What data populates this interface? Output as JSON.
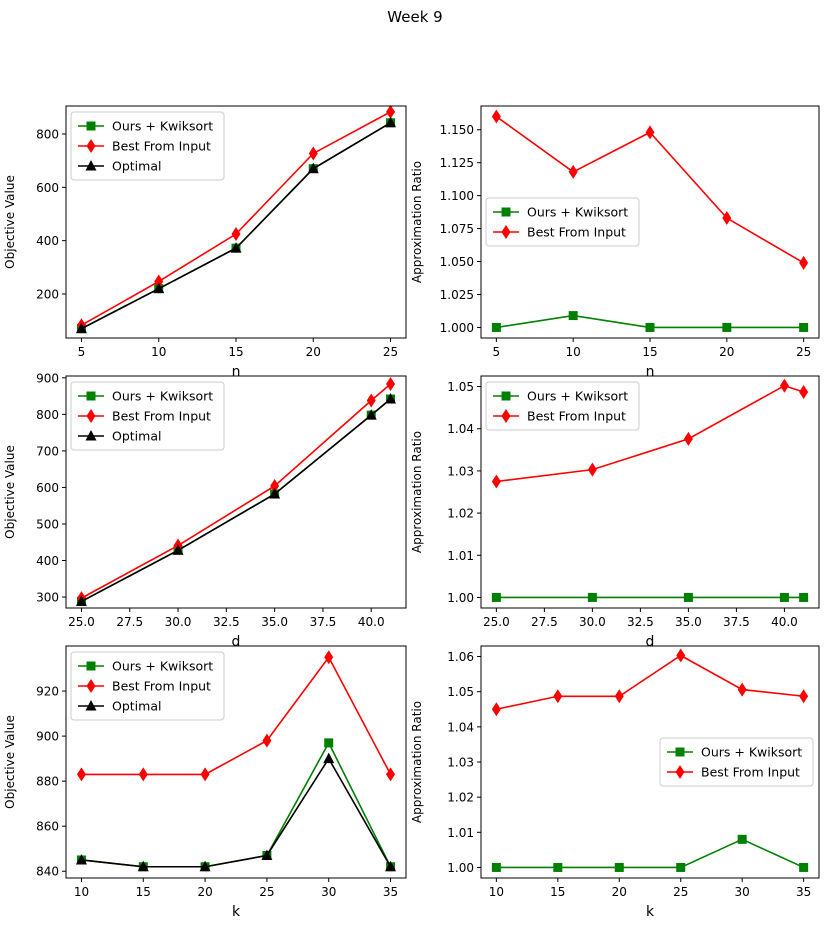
{
  "figure_title": "Week 9",
  "colors": {
    "ours": "#008000",
    "input": "#ff0000",
    "optimal": "#000000"
  },
  "chart_data": [
    {
      "type": "line",
      "id": "n_obj",
      "xlabel": "n",
      "ylabel": "Objective Value",
      "x": [
        5,
        10,
        15,
        20,
        25
      ],
      "xlim": [
        4.0,
        26.0
      ],
      "ylim": [
        35,
        905
      ],
      "xticks": [
        5,
        10,
        15,
        20,
        25
      ],
      "xtick_labels": [
        "5",
        "10",
        "15",
        "20",
        "25"
      ],
      "yticks": [
        200,
        400,
        600,
        800
      ],
      "ytick_labels": [
        "200",
        "400",
        "600",
        "800"
      ],
      "legend": "upper-left",
      "series": [
        {
          "name": "Ours + Kwiksort",
          "color": "#008000",
          "marker": "square",
          "values": [
            70,
            220,
            372,
            670,
            842
          ]
        },
        {
          "name": "Best From Input",
          "color": "#ff0000",
          "marker": "diamond",
          "values": [
            83,
            247,
            425,
            727,
            883
          ]
        },
        {
          "name": "Optimal",
          "color": "#000000",
          "marker": "triangle",
          "values": [
            70,
            220,
            372,
            670,
            842
          ]
        }
      ]
    },
    {
      "type": "line",
      "id": "n_ratio",
      "xlabel": "n",
      "ylabel": "Approximation Ratio",
      "x": [
        5,
        10,
        15,
        20,
        25
      ],
      "xlim": [
        4.0,
        26.0
      ],
      "ylim": [
        0.992,
        1.168
      ],
      "xticks": [
        5,
        10,
        15,
        20,
        25
      ],
      "xtick_labels": [
        "5",
        "10",
        "15",
        "20",
        "25"
      ],
      "yticks": [
        1.0,
        1.025,
        1.05,
        1.075,
        1.1,
        1.125,
        1.15
      ],
      "ytick_labels": [
        "1.000",
        "1.025",
        "1.050",
        "1.075",
        "1.100",
        "1.125",
        "1.150"
      ],
      "legend": "center-left",
      "series": [
        {
          "name": "Ours + Kwiksort",
          "color": "#008000",
          "marker": "square",
          "values": [
            1.0,
            1.009,
            1.0,
            1.0,
            1.0
          ]
        },
        {
          "name": "Best From Input",
          "color": "#ff0000",
          "marker": "diamond",
          "values": [
            1.16,
            1.118,
            1.148,
            1.083,
            1.049
          ]
        }
      ]
    },
    {
      "type": "line",
      "id": "d_obj",
      "xlabel": "d",
      "ylabel": "Objective Value",
      "x": [
        25,
        30,
        35,
        40,
        41
      ],
      "xlim": [
        24.2,
        41.8
      ],
      "ylim": [
        270,
        905
      ],
      "xticks": [
        25,
        27.5,
        30,
        32.5,
        35,
        37.5,
        40
      ],
      "xtick_labels": [
        "25.0",
        "27.5",
        "30.0",
        "32.5",
        "35.0",
        "37.5",
        "40.0"
      ],
      "yticks": [
        300,
        400,
        500,
        600,
        700,
        800,
        900
      ],
      "ytick_labels": [
        "300",
        "400",
        "500",
        "600",
        "700",
        "800",
        "900"
      ],
      "legend": "upper-left",
      "series": [
        {
          "name": "Ours + Kwiksort",
          "color": "#008000",
          "marker": "square",
          "values": [
            288,
            428,
            582,
            798,
            842
          ]
        },
        {
          "name": "Best From Input",
          "color": "#ff0000",
          "marker": "diamond",
          "values": [
            297,
            441,
            604,
            838,
            883
          ]
        },
        {
          "name": "Optimal",
          "color": "#000000",
          "marker": "triangle",
          "values": [
            288,
            428,
            582,
            798,
            842
          ]
        }
      ]
    },
    {
      "type": "line",
      "id": "d_ratio",
      "xlabel": "d",
      "ylabel": "Approximation Ratio",
      "x": [
        25,
        30,
        35,
        40,
        41
      ],
      "xlim": [
        24.2,
        41.8
      ],
      "ylim": [
        0.9975,
        1.0525
      ],
      "xticks": [
        25,
        27.5,
        30,
        32.5,
        35,
        37.5,
        40
      ],
      "xtick_labels": [
        "25.0",
        "27.5",
        "30.0",
        "32.5",
        "35.0",
        "37.5",
        "40.0"
      ],
      "yticks": [
        1.0,
        1.01,
        1.02,
        1.03,
        1.04,
        1.05
      ],
      "ytick_labels": [
        "1.00",
        "1.01",
        "1.02",
        "1.03",
        "1.04",
        "1.05"
      ],
      "legend": "upper-left",
      "series": [
        {
          "name": "Ours + Kwiksort",
          "color": "#008000",
          "marker": "square",
          "values": [
            1.0,
            1.0,
            1.0,
            1.0,
            1.0
          ]
        },
        {
          "name": "Best From Input",
          "color": "#ff0000",
          "marker": "diamond",
          "values": [
            1.0275,
            1.0303,
            1.0376,
            1.0502,
            1.0487
          ]
        }
      ]
    },
    {
      "type": "line",
      "id": "k_obj",
      "xlabel": "k",
      "ylabel": "Objective Value",
      "x": [
        10,
        15,
        20,
        25,
        30,
        35
      ],
      "xlim": [
        8.75,
        36.25
      ],
      "ylim": [
        837,
        940
      ],
      "xticks": [
        10,
        15,
        20,
        25,
        30,
        35
      ],
      "xtick_labels": [
        "10",
        "15",
        "20",
        "25",
        "30",
        "35"
      ],
      "yticks": [
        840,
        860,
        880,
        900,
        920
      ],
      "ytick_labels": [
        "840",
        "860",
        "880",
        "900",
        "920"
      ],
      "legend": "upper-left",
      "series": [
        {
          "name": "Ours + Kwiksort",
          "color": "#008000",
          "marker": "square",
          "values": [
            845,
            842,
            842,
            847,
            897,
            842
          ]
        },
        {
          "name": "Best From Input",
          "color": "#ff0000",
          "marker": "diamond",
          "values": [
            883,
            883,
            883,
            898,
            935,
            883
          ]
        },
        {
          "name": "Optimal",
          "color": "#000000",
          "marker": "triangle",
          "values": [
            845,
            842,
            842,
            847,
            890,
            842
          ]
        }
      ]
    },
    {
      "type": "line",
      "id": "k_ratio",
      "xlabel": "k",
      "ylabel": "Approximation Ratio",
      "x": [
        10,
        15,
        20,
        25,
        30,
        35
      ],
      "xlim": [
        8.75,
        36.25
      ],
      "ylim": [
        0.997,
        1.063
      ],
      "xticks": [
        10,
        15,
        20,
        25,
        30,
        35
      ],
      "xtick_labels": [
        "10",
        "15",
        "20",
        "25",
        "30",
        "35"
      ],
      "yticks": [
        1.0,
        1.01,
        1.02,
        1.03,
        1.04,
        1.05,
        1.06
      ],
      "ytick_labels": [
        "1.00",
        "1.01",
        "1.02",
        "1.03",
        "1.04",
        "1.05",
        "1.06"
      ],
      "legend": "center-right",
      "series": [
        {
          "name": "Ours + Kwiksort",
          "color": "#008000",
          "marker": "square",
          "values": [
            1.0,
            1.0,
            1.0,
            1.0,
            1.008,
            1.0
          ]
        },
        {
          "name": "Best From Input",
          "color": "#ff0000",
          "marker": "diamond",
          "values": [
            1.045,
            1.0487,
            1.0487,
            1.0603,
            1.0506,
            1.0487
          ]
        }
      ]
    }
  ]
}
